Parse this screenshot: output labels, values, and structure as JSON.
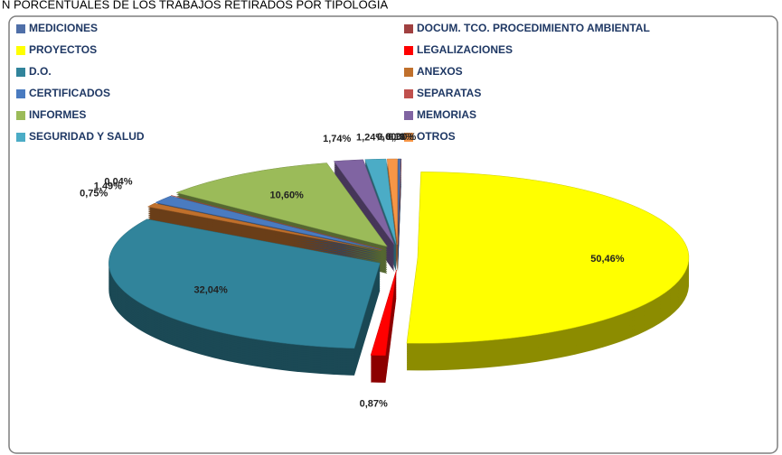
{
  "chart_data": {
    "type": "pie",
    "title": "N PORCENTUALES DE LOS TRABAJOS RETIRADOS POR TIPOLOGIA",
    "categories": [
      "MEDICIONES",
      "DOCUM. TCO. PROCEDIMIENTO AMBIENTAL",
      "PROYECTOS",
      "LEGALIZACIONES",
      "D.O.",
      "ANEXOS",
      "CERTIFICADOS",
      "SEPARATAS",
      "INFORMES",
      "MEMORIAS",
      "SEGURIDAD Y SALUD",
      "OTROS"
    ],
    "values": [
      0.19,
      0.0,
      50.46,
      0.87,
      32.04,
      0.75,
      1.49,
      0.04,
      10.6,
      1.74,
      1.24,
      0.6
    ],
    "value_labels": [
      "0,19%",
      "0,00%",
      "50,46%",
      "0,87%",
      "32,04%",
      "0,75%",
      "1,49%",
      "0,04%",
      "10,60%",
      "1,74%",
      "1,24%",
      "0,60%"
    ],
    "colors": [
      "#4f6fa8",
      "#a04040",
      "#ffff00",
      "#ff0000",
      "#31849b",
      "#c0702c",
      "#4a7bc0",
      "#c0504d",
      "#9bbb59",
      "#8064a2",
      "#4bacc6",
      "#f79646"
    ]
  }
}
